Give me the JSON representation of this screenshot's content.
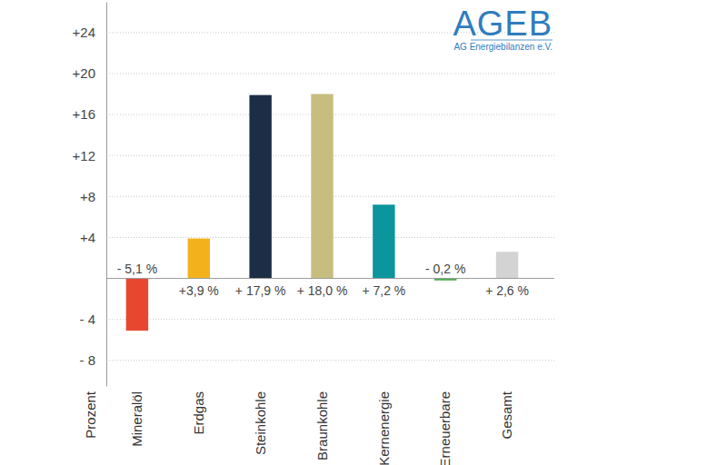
{
  "chart_data": {
    "type": "bar",
    "y_label": "Prozent",
    "annotations": [
      "AGEB",
      "AG Energiebilanzen e.V."
    ],
    "categories": [
      "Mineralöl",
      "Erdgas",
      "Steinkohle",
      "Braunkohle",
      "Kernenergie",
      "Erneuerbare",
      "Gesamt"
    ],
    "values": [
      -5.1,
      3.9,
      17.9,
      18.0,
      7.2,
      -0.2,
      2.6
    ],
    "value_labels": [
      "- 5,1 %",
      "+3,9 %",
      "+ 17,9 %",
      "+ 18,0 %",
      "+ 7,2 %",
      "- 0,2 %",
      "+ 2,6 %"
    ],
    "colors": [
      "#e8472f",
      "#f3b21c",
      "#1c2e45",
      "#c7bd7f",
      "#0d959e",
      "#4caf50",
      "#d3d3d3"
    ],
    "ylim": [
      -10.5,
      27
    ],
    "yticks": [
      {
        "value": -8,
        "label": "- 8"
      },
      {
        "value": -4,
        "label": "- 4"
      },
      {
        "value": 4,
        "label": "+4"
      },
      {
        "value": 8,
        "label": "+8"
      },
      {
        "value": 12,
        "label": "+12"
      },
      {
        "value": 16,
        "label": "+16"
      },
      {
        "value": 20,
        "label": "+20"
      },
      {
        "value": 24,
        "label": "+24"
      }
    ],
    "grid": true,
    "data_labels": true
  }
}
